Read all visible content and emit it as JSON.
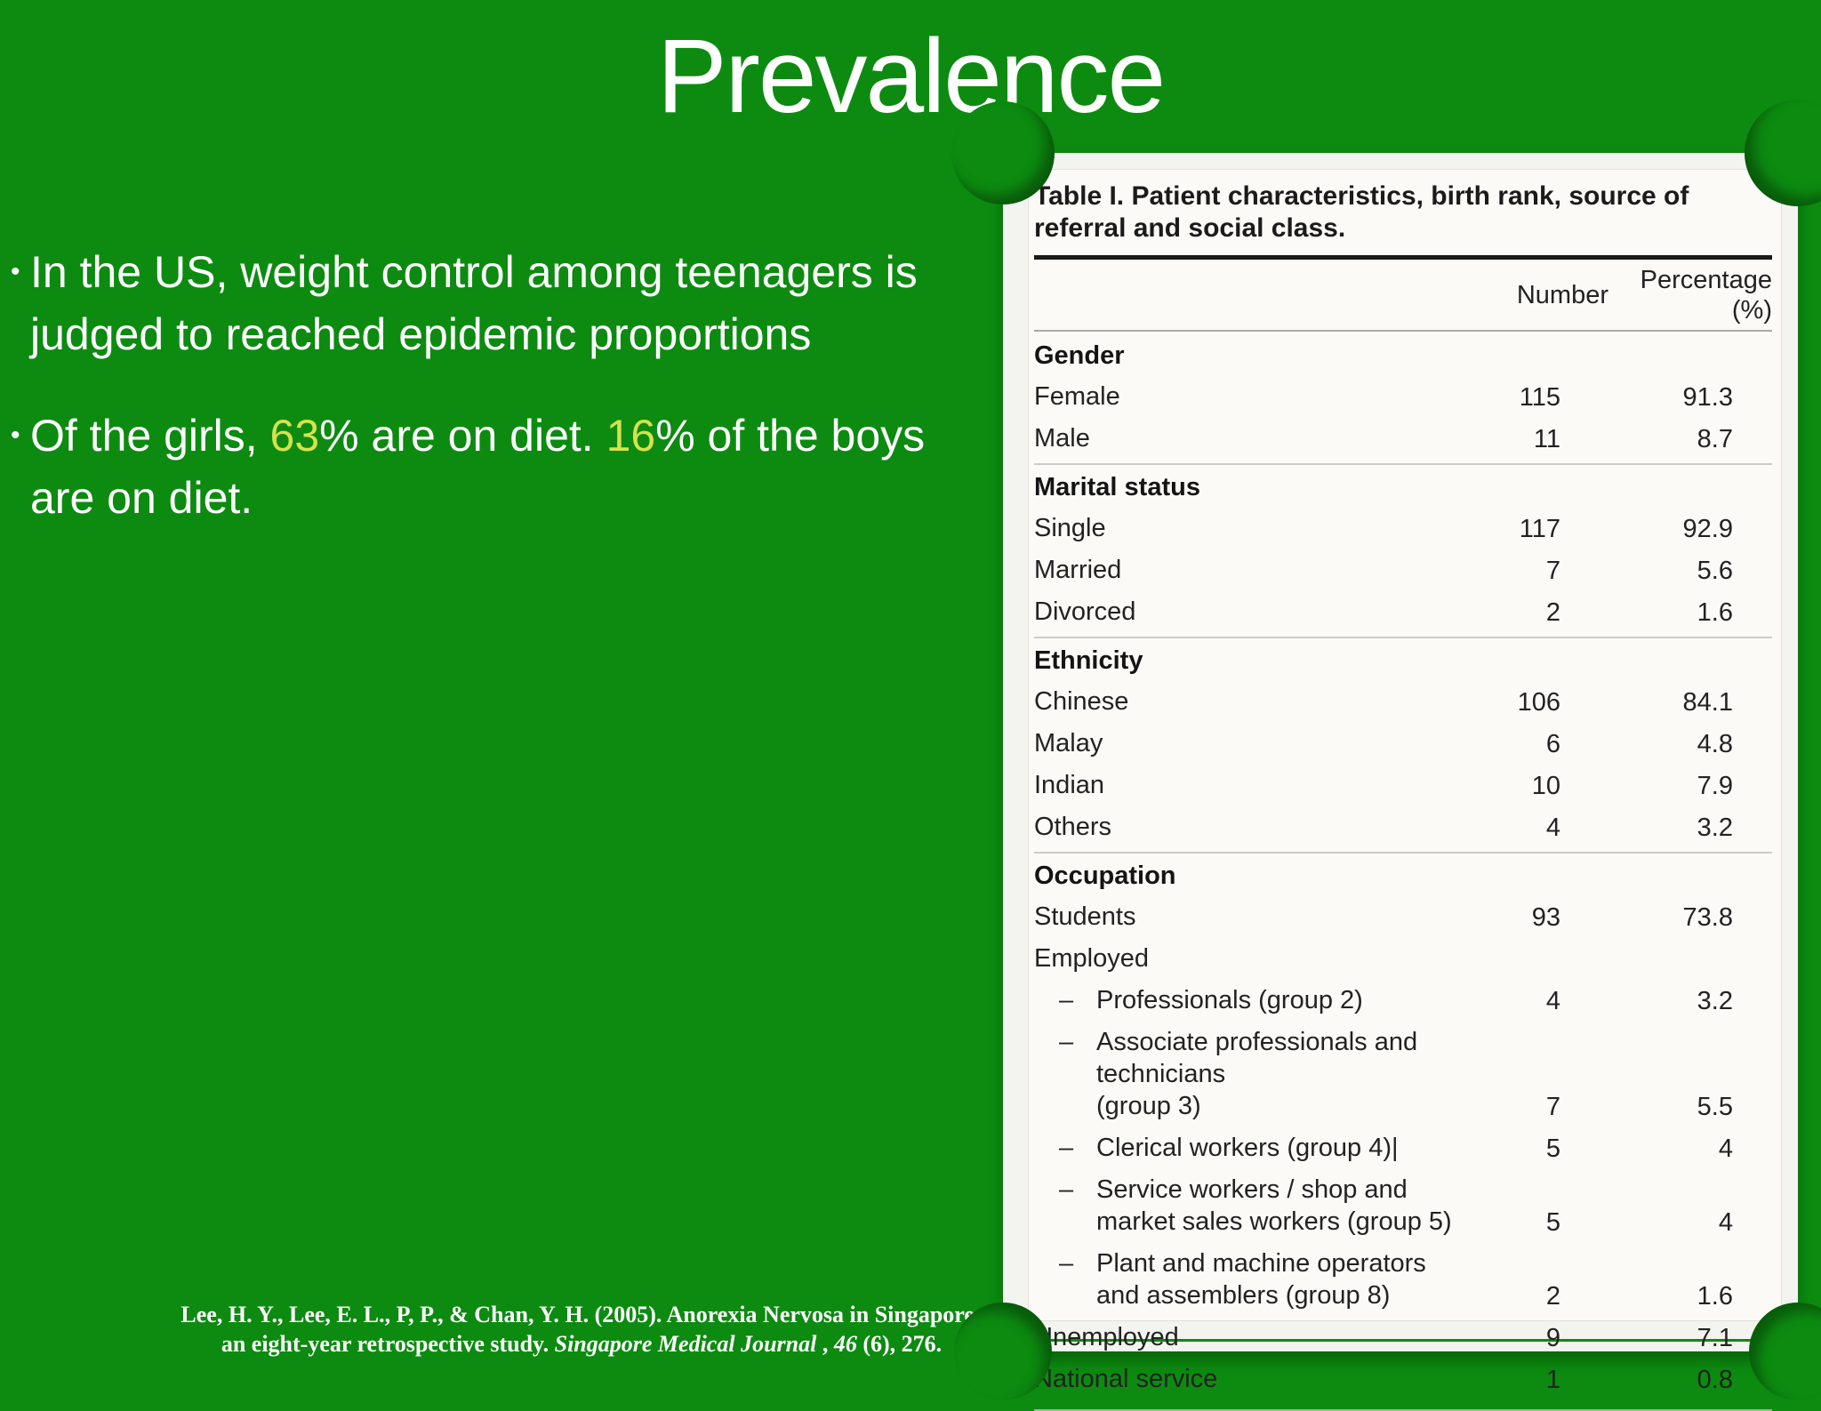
{
  "slide": {
    "title": "Prevalence",
    "background_color": "#0c8b10",
    "highlight_color": "#d6e24c",
    "bullet_marker": "•",
    "bullet1": {
      "text": "In the US, weight control among teenagers is judged to reached epidemic proportions"
    },
    "bullet2": {
      "pre": "Of the girls, ",
      "highlight1": "63",
      "mid": "% are on diet. ",
      "highlight2": "16",
      "post": "% of the boys are on diet."
    }
  },
  "citation": {
    "line1": "Lee, H. Y., Lee, E. L., P, P., & Chan, Y. H. (2005). Anorexia Nervosa in Singapore:",
    "line2_pre": "an eight-year retrospective study. ",
    "line2_italic1": "Singapore Medical Journal",
    "line2_mid": " , ",
    "line2_italic2": "46",
    "line2_post": " (6), 276."
  },
  "table": {
    "caption": "Table I. Patient characteristics, birth rank, source of referral and social class.",
    "columns": {
      "number": "Number",
      "percentage": "Percentage (%)"
    },
    "sections": [
      {
        "header": "Gender",
        "rows": [
          {
            "label": "Female",
            "number": "115",
            "pct": "91.3"
          },
          {
            "label": "Male",
            "number": "11",
            "pct": "8.7"
          }
        ]
      },
      {
        "header": "Marital status",
        "rows": [
          {
            "label": "Single",
            "number": "117",
            "pct": "92.9"
          },
          {
            "label": "Married",
            "number": "7",
            "pct": "5.6"
          },
          {
            "label": "Divorced",
            "number": "2",
            "pct": "1.6"
          }
        ]
      },
      {
        "header": "Ethnicity",
        "rows": [
          {
            "label": "Chinese",
            "number": "106",
            "pct": "84.1"
          },
          {
            "label": "Malay",
            "number": "6",
            "pct": "4.8"
          },
          {
            "label": "Indian",
            "number": "10",
            "pct": "7.9"
          },
          {
            "label": "Others",
            "number": "4",
            "pct": "3.2"
          }
        ]
      },
      {
        "header": "Occupation",
        "rows": [
          {
            "label": "Students",
            "number": "93",
            "pct": "73.8"
          },
          {
            "label": "Employed",
            "number": "",
            "pct": ""
          },
          {
            "dash": "–",
            "label": "Professionals (group 2)",
            "number": "4",
            "pct": "3.2"
          },
          {
            "dash": "–",
            "label": "Associate professionals and technicians",
            "label2": "(group 3)",
            "number": "7",
            "pct": "5.5"
          },
          {
            "dash": "–",
            "label": "Clerical workers (group 4)|",
            "number": "5",
            "pct": "4"
          },
          {
            "dash": "–",
            "label": "Service workers / shop and",
            "label2": "market sales workers (group 5)",
            "number": "5",
            "pct": "4"
          },
          {
            "dash": "–",
            "label": "Plant and machine operators",
            "label2": "and assemblers (group 8)",
            "number": "2",
            "pct": "1.6"
          },
          {
            "label": "Unemployed",
            "number": "9",
            "pct": "7.1"
          },
          {
            "label": "National service",
            "number": "1",
            "pct": "0.8"
          }
        ]
      }
    ]
  }
}
